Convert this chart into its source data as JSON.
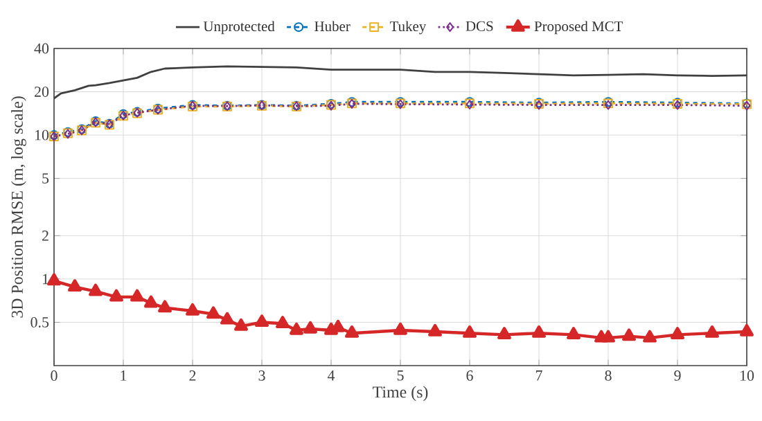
{
  "chart_data": {
    "type": "line",
    "xlabel": "Time (s)",
    "ylabel": "3D Position RMSE (m, log scale)",
    "log": "y",
    "grid": true,
    "legend": "top",
    "xlim": [
      0,
      10
    ],
    "ylim": [
      0.25,
      40
    ],
    "xticks": [
      0,
      1,
      2,
      3,
      4,
      5,
      6,
      7,
      8,
      9,
      10
    ],
    "yticks": [
      0.5,
      1,
      2,
      5,
      10,
      20,
      40
    ],
    "series": [
      {
        "name": "Unprotected",
        "color": "#404040",
        "line_style": "solid",
        "marker": "none",
        "x": [
          0,
          0.1,
          0.3,
          0.5,
          0.6,
          0.8,
          1,
          1.2,
          1.4,
          1.6,
          2,
          2.5,
          3,
          3.5,
          4,
          4.5,
          5,
          5.5,
          6,
          6.5,
          7,
          7.5,
          8,
          8.5,
          9,
          9.5,
          10
        ],
        "values": [
          18,
          19.5,
          20.5,
          22,
          22.2,
          23,
          24,
          25,
          27.5,
          29,
          29.5,
          30,
          29.8,
          29.5,
          28.5,
          28.5,
          28.5,
          27.5,
          27.5,
          27,
          26.5,
          26,
          26.2,
          26.5,
          26,
          25.8,
          26
        ]
      },
      {
        "name": "Huber",
        "color": "#0072BD",
        "line_style": "dashed",
        "marker": "circle",
        "x": [
          0,
          0.2,
          0.4,
          0.6,
          0.8,
          1,
          1.2,
          1.5,
          2,
          2.5,
          3,
          3.5,
          4,
          4.3,
          5,
          6,
          7,
          8,
          9,
          10
        ],
        "values": [
          10,
          10.5,
          11,
          12.5,
          12,
          14,
          14.5,
          15.3,
          16.2,
          16,
          16.2,
          16,
          16.5,
          17,
          17,
          17,
          16.8,
          17,
          16.8,
          16.6
        ]
      },
      {
        "name": "Tukey",
        "color": "#EDB120",
        "line_style": "dashed",
        "marker": "square",
        "x": [
          0,
          0.2,
          0.4,
          0.6,
          0.8,
          1,
          1.2,
          1.5,
          2,
          2.5,
          3,
          3.5,
          4,
          4.3,
          5,
          6,
          7,
          8,
          9,
          10
        ],
        "values": [
          9.8,
          10.3,
          10.8,
          12.2,
          11.8,
          13.6,
          14.2,
          15,
          15.8,
          15.8,
          16,
          15.8,
          16.2,
          16.6,
          16.6,
          16.6,
          16.5,
          16.6,
          16.5,
          16.4
        ]
      },
      {
        "name": "DCS",
        "color": "#7E2F8E",
        "line_style": "dotted",
        "marker": "diamond",
        "x": [
          0,
          0.2,
          0.4,
          0.6,
          0.8,
          1,
          1.2,
          1.5,
          2,
          2.5,
          3,
          3.5,
          4,
          4.3,
          5,
          6,
          7,
          8,
          9,
          10
        ],
        "values": [
          9.8,
          10.2,
          10.8,
          12.3,
          11.9,
          13.7,
          14.3,
          15,
          16,
          15.9,
          16.1,
          15.9,
          16,
          16.5,
          16.4,
          16.3,
          16.2,
          16.2,
          16.2,
          16
        ]
      },
      {
        "name": "Proposed MCT",
        "color": "#D62728",
        "line_style": "solid",
        "marker": "triangle",
        "x": [
          0,
          0.3,
          0.6,
          0.9,
          1.2,
          1.4,
          1.6,
          2,
          2.3,
          2.5,
          2.7,
          3,
          3.3,
          3.5,
          3.7,
          4,
          4.1,
          4.3,
          5,
          5.5,
          6,
          6.5,
          7,
          7.5,
          7.9,
          8,
          8.3,
          8.6,
          9,
          9.5,
          10
        ],
        "values": [
          0.97,
          0.88,
          0.82,
          0.75,
          0.75,
          0.68,
          0.63,
          0.6,
          0.57,
          0.52,
          0.47,
          0.5,
          0.49,
          0.44,
          0.45,
          0.44,
          0.46,
          0.42,
          0.44,
          0.43,
          0.42,
          0.41,
          0.42,
          0.41,
          0.39,
          0.39,
          0.4,
          0.39,
          0.41,
          0.42,
          0.43
        ]
      }
    ]
  }
}
